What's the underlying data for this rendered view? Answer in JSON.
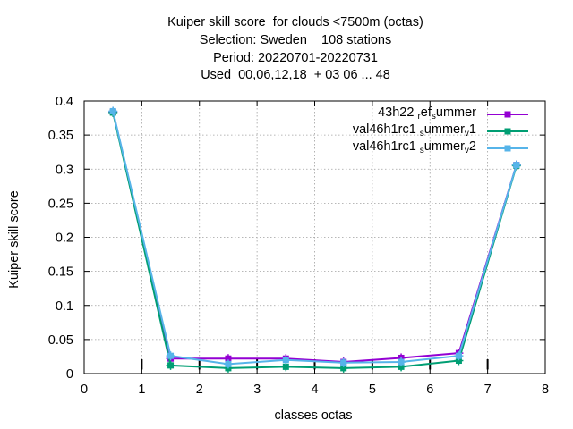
{
  "chart_data": {
    "type": "line",
    "title_lines": [
      "Kuiper skill score  for clouds <7500m (octas)",
      "Selection: Sweden    108 stations",
      "Period: 20220701-20220731",
      "Used  00,06,12,18  + 03 06 ... 48"
    ],
    "xlabel": "classes octas",
    "ylabel": "Kuiper skill score",
    "xlim": [
      0,
      8
    ],
    "ylim": [
      0,
      0.4
    ],
    "x_ticks": [
      "0",
      "1",
      "2",
      "3",
      "4",
      "5",
      "6",
      "7",
      "8"
    ],
    "y_ticks": [
      "0",
      "0.05",
      "0.1",
      "0.15",
      "0.2",
      "0.25",
      "0.3",
      "0.35",
      "0.4"
    ],
    "x": [
      0.5,
      1.5,
      2.5,
      3.5,
      4.5,
      5.5,
      6.5,
      7.5
    ],
    "grid": true,
    "legend_position": "top-right",
    "series": [
      {
        "name": "43h22_ref_summer",
        "legend_parts": [
          "43h22 ",
          "r",
          "ef",
          "s",
          "ummer"
        ],
        "color": "#9400d3",
        "values": [
          0.384,
          0.022,
          0.022,
          0.022,
          0.017,
          0.023,
          0.03,
          0.306
        ]
      },
      {
        "name": "val46h1rc1_summer_v1",
        "legend_parts": [
          "val46h1rc1 ",
          "s",
          "ummer",
          "v",
          "1"
        ],
        "color": "#009e73",
        "values": [
          0.383,
          0.012,
          0.008,
          0.01,
          0.008,
          0.01,
          0.019,
          0.305
        ]
      },
      {
        "name": "val46h1rc1_summer_v2",
        "legend_parts": [
          "val46h1rc1 ",
          "s",
          "ummer",
          "v",
          "2"
        ],
        "color": "#56b4e9",
        "values": [
          0.385,
          0.026,
          0.014,
          0.02,
          0.016,
          0.017,
          0.026,
          0.306
        ]
      }
    ],
    "black_tick_marks_x": [
      1,
      2,
      3,
      4,
      5,
      6,
      7
    ]
  }
}
